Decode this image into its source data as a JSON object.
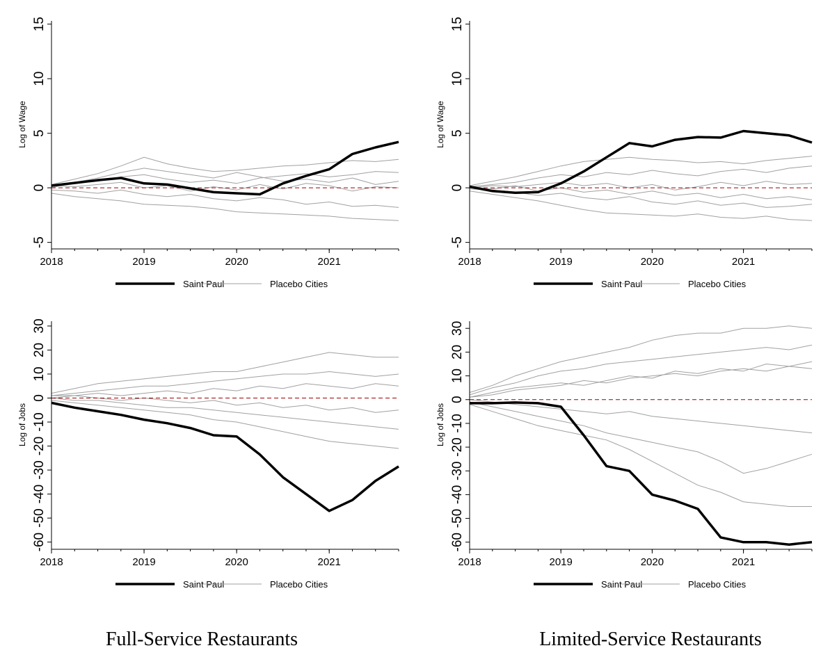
{
  "captions": [
    "Full-Service Restaurants",
    "Limited-Service Restaurants"
  ],
  "chart_data": [
    {
      "type": "line",
      "ylabel": "Log of Wage",
      "x": [
        2018,
        2018.25,
        2018.5,
        2018.75,
        2019,
        2019.25,
        2019.5,
        2019.75,
        2020,
        2020.25,
        2020.5,
        2020.75,
        2021,
        2021.25,
        2021.5,
        2021.75
      ],
      "xlim": [
        2018,
        2021.75
      ],
      "xticks": [
        2018,
        2019,
        2020,
        2021
      ],
      "ylim": [
        -5.6,
        15.3
      ],
      "yticks": [
        -5,
        0,
        5,
        10,
        15
      ],
      "hline": 0,
      "hline_color": "#990000",
      "series": [
        {
          "name": "Saint Paul",
          "color": "#000000",
          "values": [
            0.2,
            0.45,
            0.7,
            0.9,
            0.4,
            0.3,
            -0.05,
            -0.4,
            -0.5,
            -0.6,
            0.4,
            1.1,
            1.7,
            3.1,
            3.7,
            4.2
          ]
        },
        {
          "name": "Placebo Cities",
          "color": "#a0a0a0",
          "lines": [
            [
              0.3,
              0.8,
              1.3,
              2.0,
              2.8,
              2.2,
              1.8,
              1.5,
              1.6,
              1.8,
              2.0,
              2.1,
              2.3,
              2.5,
              2.4,
              2.6
            ],
            [
              -0.5,
              -0.8,
              -1.0,
              -1.2,
              -1.5,
              -1.6,
              -1.7,
              -1.9,
              -2.2,
              -2.3,
              -2.4,
              -2.5,
              -2.6,
              -2.8,
              -2.9,
              -3.0
            ],
            [
              0.1,
              0.4,
              0.6,
              1.0,
              1.2,
              0.8,
              0.5,
              0.7,
              0.4,
              0.9,
              1.1,
              1.3,
              1.0,
              1.2,
              1.5,
              1.4
            ],
            [
              -0.2,
              -0.3,
              -0.5,
              -0.2,
              -0.6,
              -0.8,
              -0.6,
              -1.0,
              -1.2,
              -0.9,
              -1.1,
              -1.5,
              -1.3,
              -1.7,
              -1.6,
              -1.8
            ],
            [
              0.2,
              0.1,
              0.3,
              0.5,
              0.0,
              0.2,
              -0.3,
              0.1,
              -0.2,
              0.3,
              -0.1,
              0.4,
              0.2,
              -0.3,
              0.1,
              0.0
            ],
            [
              0.0,
              0.5,
              0.9,
              1.4,
              1.8,
              1.5,
              1.2,
              0.9,
              1.4,
              1.0,
              0.6,
              0.8,
              0.5,
              0.9,
              0.3,
              0.6
            ]
          ]
        }
      ]
    },
    {
      "type": "line",
      "ylabel": "Log of Wage",
      "x": [
        2018,
        2018.25,
        2018.5,
        2018.75,
        2019,
        2019.25,
        2019.5,
        2019.75,
        2020,
        2020.25,
        2020.5,
        2020.75,
        2021,
        2021.25,
        2021.5,
        2021.75
      ],
      "xlim": [
        2018,
        2021.75
      ],
      "xticks": [
        2018,
        2019,
        2020,
        2021
      ],
      "ylim": [
        -5.6,
        15.3
      ],
      "yticks": [
        -5,
        0,
        5,
        10,
        15
      ],
      "hline": 0,
      "hline_color": "#990000",
      "series": [
        {
          "name": "Saint Paul",
          "color": "#000000",
          "values": [
            0.1,
            -0.3,
            -0.45,
            -0.4,
            0.4,
            1.5,
            2.8,
            4.1,
            3.8,
            4.4,
            4.65,
            4.6,
            5.2,
            5.0,
            4.8,
            4.15
          ]
        },
        {
          "name": "Placebo Cities",
          "color": "#a0a0a0",
          "lines": [
            [
              0.2,
              0.6,
              1.0,
              1.5,
              2.0,
              2.4,
              2.6,
              2.8,
              2.6,
              2.5,
              2.3,
              2.4,
              2.2,
              2.5,
              2.7,
              2.9
            ],
            [
              -0.3,
              -0.6,
              -0.9,
              -1.2,
              -1.6,
              -2.0,
              -2.3,
              -2.4,
              -2.5,
              -2.6,
              -2.4,
              -2.7,
              -2.8,
              -2.6,
              -2.9,
              -3.0
            ],
            [
              0.1,
              0.3,
              0.5,
              0.9,
              1.2,
              1.0,
              1.4,
              1.2,
              1.6,
              1.3,
              1.1,
              1.5,
              1.7,
              1.4,
              1.8,
              2.0
            ],
            [
              -0.1,
              -0.2,
              -0.4,
              -0.7,
              -0.5,
              -0.9,
              -1.1,
              -0.8,
              -1.3,
              -1.5,
              -1.2,
              -1.6,
              -1.4,
              -1.8,
              -1.7,
              -1.5
            ],
            [
              0.0,
              0.2,
              0.1,
              0.3,
              0.5,
              0.2,
              0.4,
              0.0,
              0.3,
              -0.2,
              0.1,
              0.5,
              0.2,
              0.6,
              0.3,
              0.4
            ],
            [
              0.0,
              -0.1,
              0.2,
              -0.3,
              0.0,
              -0.4,
              -0.2,
              -0.6,
              -0.3,
              -0.7,
              -0.5,
              -0.9,
              -0.6,
              -1.0,
              -0.8,
              -1.1
            ]
          ]
        }
      ]
    },
    {
      "type": "line",
      "ylabel": "Log of Jobs",
      "x": [
        2018,
        2018.25,
        2018.5,
        2018.75,
        2019,
        2019.25,
        2019.5,
        2019.75,
        2020,
        2020.25,
        2020.5,
        2020.75,
        2021,
        2021.25,
        2021.5,
        2021.75
      ],
      "xlim": [
        2018,
        2021.75
      ],
      "xticks": [
        2018,
        2019,
        2020,
        2021
      ],
      "ylim": [
        -63,
        32
      ],
      "yticks": [
        -60,
        -50,
        -40,
        -30,
        -20,
        -10,
        0,
        10,
        20,
        30
      ],
      "hline": 0,
      "hline_color": "#990000",
      "series": [
        {
          "name": "Saint Paul",
          "color": "#000000",
          "values": [
            -2,
            -4,
            -5.5,
            -7,
            -9,
            -10.5,
            -12.5,
            -15.5,
            -16,
            -23.5,
            -33,
            -40,
            -47,
            -42.5,
            -34.5,
            -28.5
          ]
        },
        {
          "name": "Placebo Cities",
          "color": "#a0a0a0",
          "lines": [
            [
              2,
              4,
              6,
              7,
              8,
              9,
              10,
              11,
              11,
              13,
              15,
              17,
              19,
              18,
              17,
              17
            ],
            [
              -1,
              -2,
              -3,
              -4,
              -5,
              -6,
              -7,
              -9,
              -10,
              -12,
              -14,
              -16,
              -18,
              -19,
              -20,
              -21
            ],
            [
              1,
              2,
              3,
              4,
              5,
              5,
              6,
              7,
              8,
              9,
              10,
              10,
              11,
              10,
              9,
              10
            ],
            [
              0,
              -1,
              -1,
              -2,
              -3,
              -4,
              -4,
              -5,
              -6,
              -7,
              -8,
              -9,
              -10,
              -11,
              -12,
              -13
            ],
            [
              1,
              1,
              2,
              1,
              2,
              3,
              2,
              4,
              3,
              5,
              4,
              6,
              5,
              4,
              6,
              5
            ],
            [
              0,
              1,
              0,
              -1,
              0,
              -1,
              -2,
              -1,
              -3,
              -2,
              -4,
              -3,
              -5,
              -4,
              -6,
              -5
            ]
          ]
        }
      ]
    },
    {
      "type": "line",
      "ylabel": "Log of Jobs",
      "x": [
        2018,
        2018.25,
        2018.5,
        2018.75,
        2019,
        2019.25,
        2019.5,
        2019.75,
        2020,
        2020.25,
        2020.5,
        2020.75,
        2021,
        2021.25,
        2021.5,
        2021.75
      ],
      "xlim": [
        2018,
        2021.75
      ],
      "xticks": [
        2018,
        2019,
        2020,
        2021
      ],
      "ylim": [
        -63,
        33
      ],
      "yticks": [
        -60,
        -50,
        -40,
        -30,
        -20,
        -10,
        0,
        10,
        20,
        30
      ],
      "hline": 0,
      "hline_color": "#990000",
      "series": [
        {
          "name": "Saint Paul",
          "color": "#000000",
          "values": [
            -1.5,
            -1.5,
            -1.2,
            -1.5,
            -3,
            -15,
            -28,
            -30,
            -40,
            -42.5,
            -46,
            -58,
            -60,
            -60,
            -61,
            -60
          ]
        },
        {
          "name": "Placebo Cities",
          "color": "#a0a0a0",
          "lines": [
            [
              3,
              6,
              10,
              13,
              16,
              18,
              20,
              22,
              25,
              27,
              28,
              28,
              30,
              30,
              31,
              30
            ],
            [
              -2,
              -5,
              -8,
              -11,
              -13,
              -15,
              -17,
              -21,
              -26,
              -31,
              -36,
              -39,
              -43,
              -44,
              -45,
              -45
            ],
            [
              2,
              5,
              7,
              10,
              12,
              13,
              15,
              16,
              17,
              18,
              19,
              20,
              21,
              22,
              21,
              23
            ],
            [
              -1,
              -3,
              -5,
              -7,
              -9,
              -11,
              -14,
              -16,
              -18,
              -20,
              -22,
              -26,
              -31,
              -29,
              -26,
              -23
            ],
            [
              1,
              2,
              4,
              5,
              6,
              8,
              7,
              9,
              10,
              11,
              10,
              12,
              13,
              12,
              14,
              13
            ],
            [
              0,
              -1,
              -2,
              -3,
              -4,
              -5,
              -6,
              -5,
              -7,
              -8,
              -9,
              -10,
              -11,
              -12,
              -13,
              -14
            ],
            [
              1,
              3,
              5,
              6,
              7,
              6,
              8,
              10,
              9,
              12,
              11,
              13,
              12,
              15,
              14,
              16
            ]
          ]
        }
      ]
    }
  ]
}
